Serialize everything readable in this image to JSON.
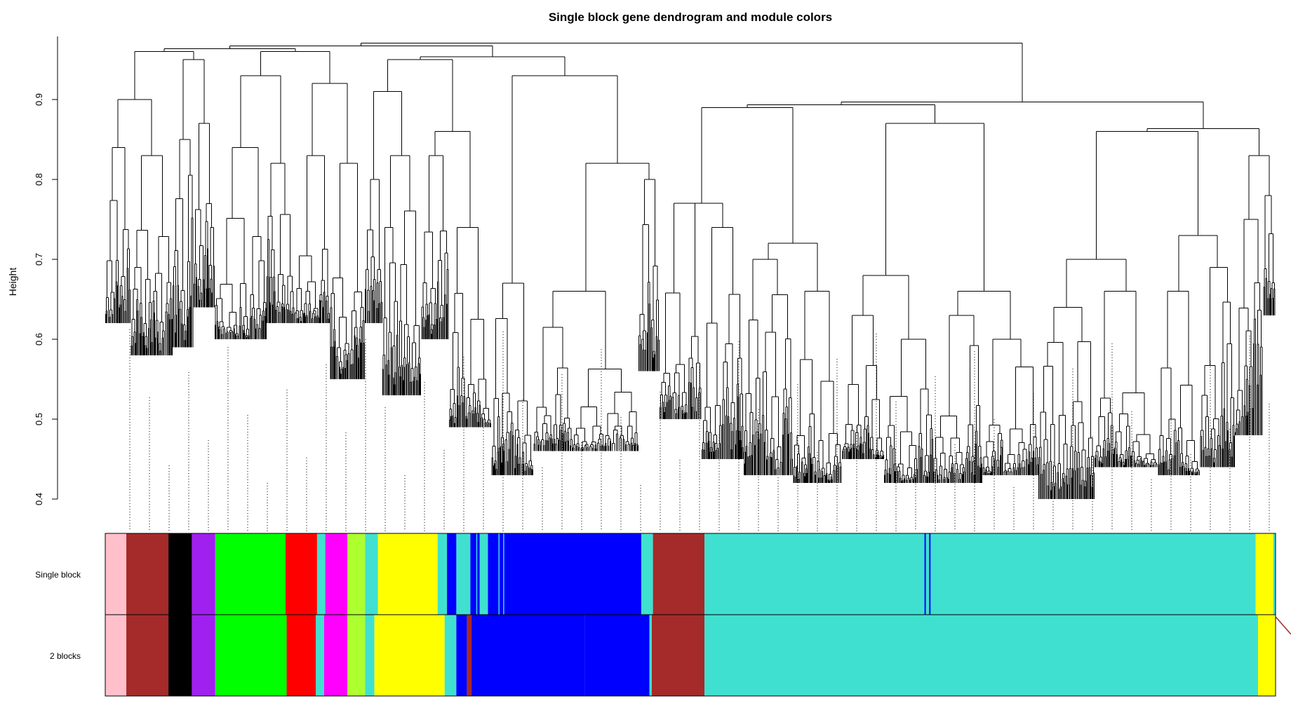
{
  "title": "Single block gene dendrogram and module colors",
  "y_axis": {
    "label": "Height",
    "range": [
      0.4,
      0.96
    ],
    "ticks": [
      "0.4",
      "0.5",
      "0.6",
      "0.7",
      "0.8",
      "0.9"
    ]
  },
  "color_rows": [
    {
      "label": "Single block",
      "segments": [
        {
          "to": 0.018,
          "color": "#ffc0cb"
        },
        {
          "to": 0.054,
          "color": "#a52a2a"
        },
        {
          "to": 0.074,
          "color": "#000000"
        },
        {
          "to": 0.094,
          "color": "#a020f0"
        },
        {
          "to": 0.154,
          "color": "#00ff00"
        },
        {
          "to": 0.181,
          "color": "#ff0000"
        },
        {
          "to": 0.188,
          "color": "#40e0d0"
        },
        {
          "to": 0.207,
          "color": "#ff00ff"
        },
        {
          "to": 0.222,
          "color": "#adff2f"
        },
        {
          "to": 0.233,
          "color": "#40e0d0"
        },
        {
          "to": 0.284,
          "color": "#ffff00"
        },
        {
          "to": 0.292,
          "color": "#40e0d0"
        },
        {
          "to": 0.3,
          "color": "#0000ff"
        },
        {
          "to": 0.312,
          "color": "#40e0d0"
        },
        {
          "to": 0.32,
          "color": "#0000ff"
        },
        {
          "to": 0.327,
          "color": "#40e0d0"
        },
        {
          "to": 0.458,
          "color": "#0000ff"
        },
        {
          "to": 0.468,
          "color": "#40e0d0"
        },
        {
          "to": 0.512,
          "color": "#a52a2a"
        },
        {
          "to": 0.983,
          "color": "#40e0d0"
        },
        {
          "to": 0.998,
          "color": "#ffff00"
        },
        {
          "to": 1.0,
          "color": "#40e0d0"
        }
      ]
    },
    {
      "label": "2 blocks",
      "segments": [
        {
          "to": 0.018,
          "color": "#ffc0cb"
        },
        {
          "to": 0.054,
          "color": "#a52a2a"
        },
        {
          "to": 0.074,
          "color": "#000000"
        },
        {
          "to": 0.094,
          "color": "#a020f0"
        },
        {
          "to": 0.155,
          "color": "#00ff00"
        },
        {
          "to": 0.18,
          "color": "#ff0000"
        },
        {
          "to": 0.187,
          "color": "#40e0d0"
        },
        {
          "to": 0.207,
          "color": "#ff00ff"
        },
        {
          "to": 0.222,
          "color": "#adff2f"
        },
        {
          "to": 0.23,
          "color": "#40e0d0"
        },
        {
          "to": 0.29,
          "color": "#ffff00"
        },
        {
          "to": 0.3,
          "color": "#40e0d0"
        },
        {
          "to": 0.309,
          "color": "#0000ff"
        },
        {
          "to": 0.313,
          "color": "#a52a2a"
        },
        {
          "to": 0.41,
          "color": "#0000ff"
        },
        {
          "to": 0.465,
          "color": "#0000ff"
        },
        {
          "to": 0.467,
          "color": "#40e0d0"
        },
        {
          "to": 0.512,
          "color": "#a52a2a"
        },
        {
          "to": 0.985,
          "color": "#40e0d0"
        },
        {
          "to": 1.0,
          "color": "#ffff00"
        }
      ]
    }
  ],
  "colors": {
    "pink": "#ffc0cb",
    "brown": "#a52a2a",
    "black": "#000000",
    "purple": "#a020f0",
    "green": "#00ff00",
    "red": "#ff0000",
    "magenta": "#ff00ff",
    "greenyellow": "#adff2f",
    "yellow": "#ffff00",
    "blue": "#0000ff",
    "turquoise": "#40e0d0"
  }
}
